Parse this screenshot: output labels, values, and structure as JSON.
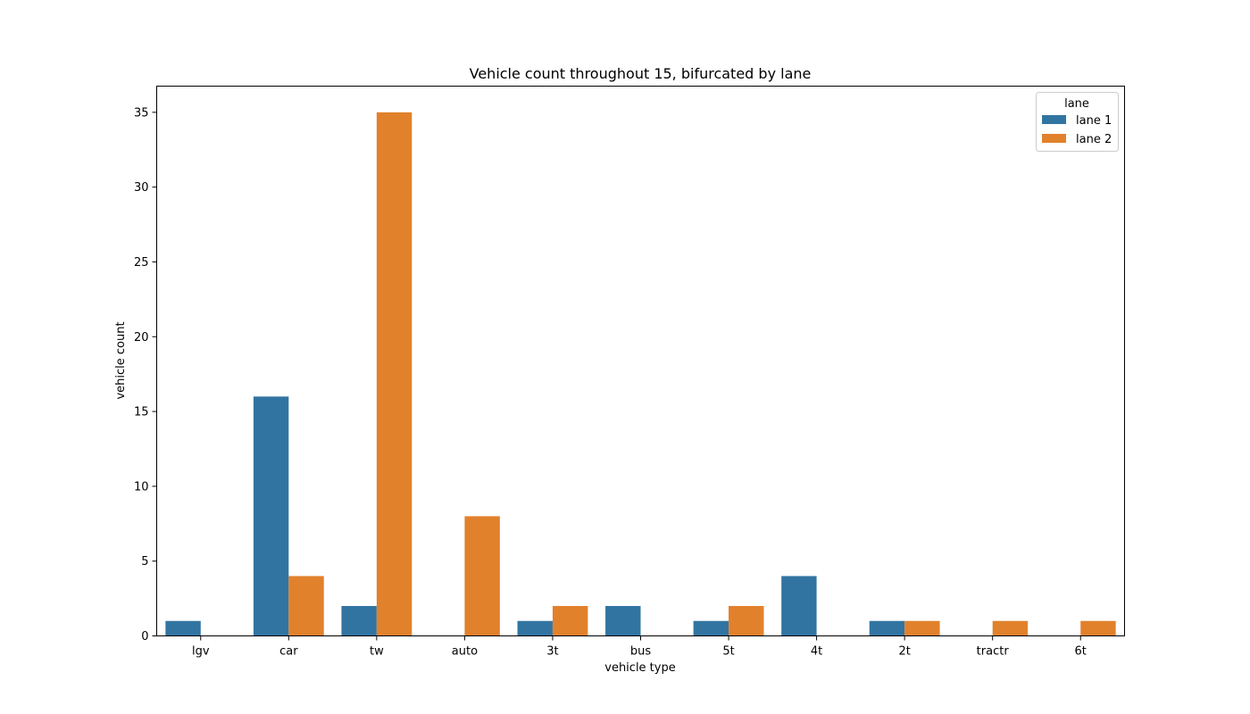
{
  "chart_data": {
    "type": "bar",
    "title": "Vehicle count throughout 15, bifurcated by lane",
    "xlabel": "vehicle type",
    "ylabel": "vehicle count",
    "categories": [
      "lgv",
      "car",
      "tw",
      "auto",
      "3t",
      "bus",
      "5t",
      "4t",
      "2t",
      "tractr",
      "6t"
    ],
    "series": [
      {
        "name": "lane 1",
        "color": "#3274a1",
        "values": [
          1,
          16,
          2,
          0,
          1,
          2,
          1,
          4,
          1,
          0,
          0
        ]
      },
      {
        "name": "lane 2",
        "color": "#e1812c",
        "values": [
          0,
          4,
          35,
          8,
          2,
          0,
          2,
          0,
          1,
          1,
          1
        ]
      }
    ],
    "ylim": [
      0,
      36.75
    ],
    "yticks": [
      0,
      5,
      10,
      15,
      20,
      25,
      30,
      35
    ],
    "grid": false,
    "legend": {
      "title": "lane",
      "position": "top-right"
    }
  }
}
